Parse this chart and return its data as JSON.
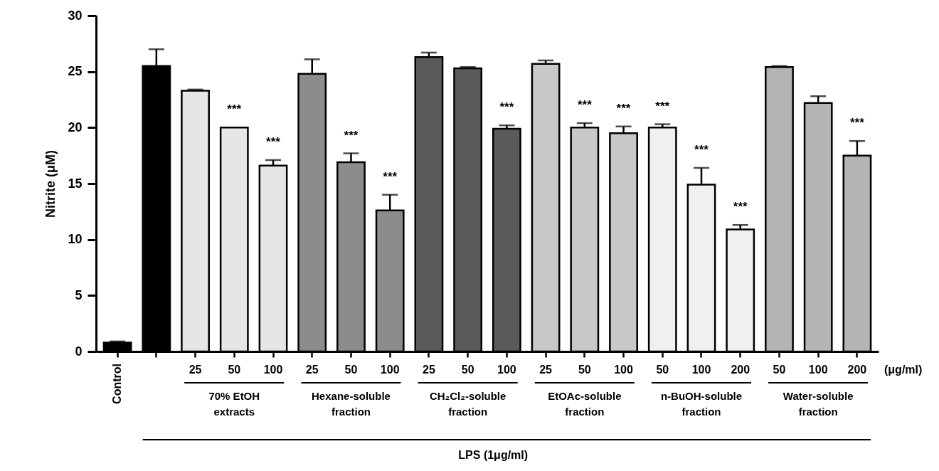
{
  "chart_data": {
    "type": "bar",
    "ylabel": "Nitrite (μM)",
    "categories": [
      "Control",
      null,
      "25",
      "50",
      "100",
      "25",
      "50",
      "100",
      "25",
      "50",
      "100",
      "25",
      "50",
      "100",
      "50",
      "100",
      "200",
      "50",
      "100",
      "200"
    ],
    "values": [
      0.8,
      25.5,
      23.3,
      20.0,
      16.6,
      24.8,
      16.9,
      12.6,
      26.3,
      25.3,
      19.9,
      25.7,
      20.0,
      19.5,
      20.0,
      14.9,
      10.9,
      25.4,
      22.2,
      17.5
    ],
    "errors": [
      0.1,
      1.5,
      0.1,
      null,
      0.5,
      1.3,
      0.8,
      1.4,
      0.4,
      0.1,
      0.3,
      0.3,
      0.4,
      0.6,
      0.3,
      1.5,
      0.4,
      0.1,
      0.6,
      1.3
    ],
    "value_labels": [
      null,
      null,
      null,
      "***",
      "***",
      null,
      "***",
      "***",
      null,
      null,
      "***",
      null,
      "***",
      "***",
      "***",
      "***",
      "***",
      null,
      null,
      "***"
    ],
    "colors": [
      "#000000",
      "#000000",
      "#e6e6e6",
      "#e6e6e6",
      "#e6e6e6",
      "#8c8c8c",
      "#8c8c8c",
      "#8c8c8c",
      "#5a5a5a",
      "#5a5a5a",
      "#5a5a5a",
      "#c8c8c8",
      "#c8c8c8",
      "#c8c8c8",
      "#f0f0f0",
      "#f0f0f0",
      "#f0f0f0",
      "#b4b4b4",
      "#b4b4b4",
      "#b4b4b4"
    ],
    "ylim": [
      0,
      30
    ],
    "yticks": [
      0,
      5,
      10,
      15,
      20,
      25,
      30
    ],
    "annotations": [
      "(μg/ml)",
      "70% EtOH\nextracts",
      "Hexane-soluble\nfraction",
      "CH₂Cl₂-soluble\nfraction",
      "EtOAc-soluble\nfraction",
      "n-BuOH-soluble\nfraction",
      "Water-soluble\nfraction",
      "LPS (1μg/ml)"
    ]
  }
}
